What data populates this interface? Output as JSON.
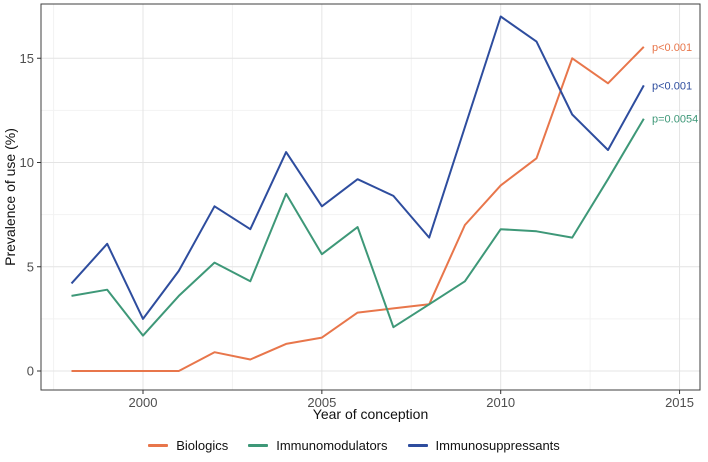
{
  "chart_data": {
    "type": "line",
    "title": "",
    "xlabel": "Year of conception",
    "ylabel": "Prevalence of use (%)",
    "x": [
      1998,
      1999,
      2000,
      2001,
      2002,
      2003,
      2004,
      2005,
      2006,
      2007,
      2008,
      2009,
      2010,
      2011,
      2012,
      2013,
      2014
    ],
    "x_ticks": [
      2000,
      2005,
      2010,
      2015
    ],
    "y_ticks": [
      0,
      5,
      10,
      15
    ],
    "xlim": [
      1997.1,
      2015.6
    ],
    "ylim": [
      -0.9,
      17.6
    ],
    "grid": true,
    "legend_position": "bottom",
    "series": [
      {
        "name": "Biologics",
        "color": "#E8764B",
        "p_label": "p<0.001",
        "values": [
          0,
          0,
          0,
          0,
          0.9,
          0.55,
          1.3,
          1.6,
          2.8,
          3.0,
          3.2,
          7.0,
          8.9,
          10.2,
          15.0,
          13.8,
          15.55
        ]
      },
      {
        "name": "Immunomodulators",
        "color": "#3E9878",
        "p_label": "p=0.0054",
        "values": [
          3.6,
          3.9,
          1.7,
          3.6,
          5.2,
          4.3,
          8.5,
          5.6,
          6.9,
          2.1,
          3.2,
          4.3,
          6.8,
          6.7,
          6.4,
          9.2,
          12.1
        ]
      },
      {
        "name": "Immunosuppressants",
        "color": "#2E4D9E",
        "p_label": "p<0.001",
        "values": [
          4.2,
          6.1,
          2.5,
          4.8,
          7.9,
          6.8,
          10.5,
          7.9,
          9.2,
          8.4,
          6.4,
          11.7,
          17.0,
          15.8,
          12.3,
          10.6,
          13.7
        ]
      }
    ]
  }
}
